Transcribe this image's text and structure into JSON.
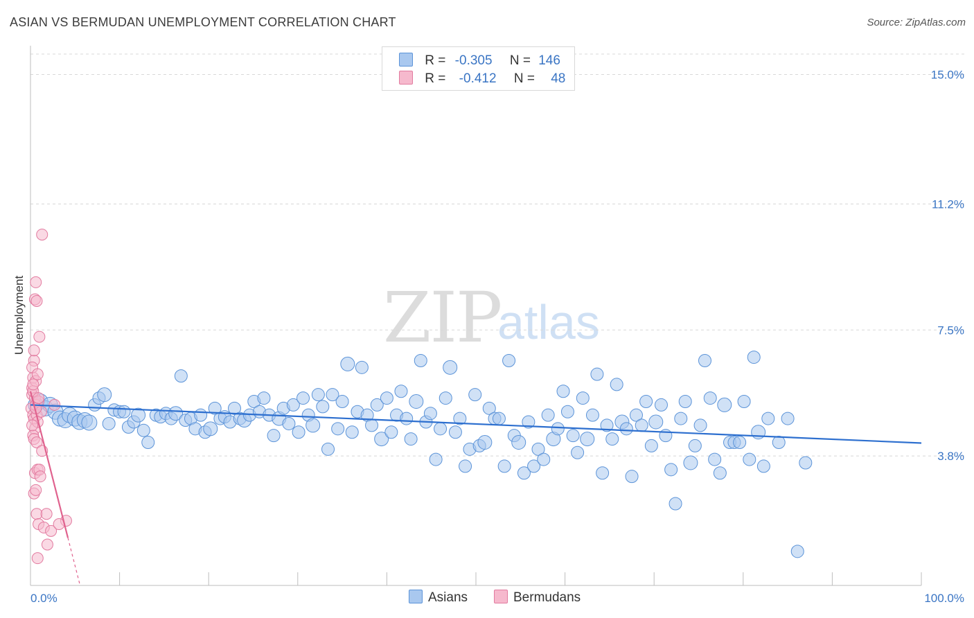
{
  "title": "ASIAN VS BERMUDAN UNEMPLOYMENT CORRELATION CHART",
  "source": "Source: ZipAtlas.com",
  "watermark": {
    "zip": "ZIP",
    "atlas": "atlas"
  },
  "legend": {
    "asians": {
      "r_label": "R =",
      "r_value": "-0.305",
      "n_label": "N =",
      "n_value": "146"
    },
    "bermudans": {
      "r_label": "R =",
      "r_value": "-0.412",
      "n_label": "N =",
      "n_value": "48"
    }
  },
  "bottom_legend": {
    "asians": "Asians",
    "bermudans": "Bermudans"
  },
  "colors": {
    "asian_fill": "#a9c8ef",
    "asian_stroke": "#5b93d8",
    "asian_line": "#2d6fcf",
    "bermudan_fill": "#f6b9cd",
    "bermudan_stroke": "#e27a9f",
    "bermudan_line": "#e0628e",
    "grid": "#d8d8d8",
    "tick_text": "#3a75c4"
  },
  "chart_data": {
    "type": "scatter",
    "title": "ASIAN VS BERMUDAN UNEMPLOYMENT CORRELATION CHART",
    "xlabel": "",
    "ylabel": "Unemployment",
    "xlim": [
      0,
      100
    ],
    "ylim": [
      0,
      15.6
    ],
    "x_tick_labels": [
      "0.0%",
      "100.0%"
    ],
    "y_ticks": [
      3.8,
      7.5,
      11.2,
      15.0
    ],
    "y_tick_labels": [
      "3.8%",
      "7.5%",
      "11.2%",
      "15.0%"
    ],
    "grid": "horizontal dashed",
    "legend_position": "top-center",
    "series": [
      {
        "name": "Asians",
        "trend": {
          "x": [
            0,
            100
          ],
          "y": [
            5.3,
            4.18
          ]
        },
        "points": [
          [
            0.6,
            5.3
          ],
          [
            1.1,
            5.4
          ],
          [
            1.7,
            5.2
          ],
          [
            2.2,
            5.3
          ],
          [
            2.8,
            5.1
          ],
          [
            3.3,
            4.9
          ],
          [
            3.9,
            4.85
          ],
          [
            4.4,
            5.0
          ],
          [
            5.0,
            4.9
          ],
          [
            5.5,
            4.8
          ],
          [
            6.1,
            4.85
          ],
          [
            6.6,
            4.78
          ],
          [
            7.2,
            5.3
          ],
          [
            7.7,
            5.5
          ],
          [
            8.3,
            5.6
          ],
          [
            8.8,
            4.75
          ],
          [
            9.4,
            5.15
          ],
          [
            10.0,
            5.1
          ],
          [
            10.5,
            5.1
          ],
          [
            11.0,
            4.65
          ],
          [
            11.6,
            4.8
          ],
          [
            12.1,
            5.0
          ],
          [
            12.7,
            4.55
          ],
          [
            13.2,
            4.2
          ],
          [
            14.1,
            5.0
          ],
          [
            14.6,
            4.95
          ],
          [
            15.2,
            5.05
          ],
          [
            15.8,
            4.9
          ],
          [
            16.3,
            5.05
          ],
          [
            16.9,
            6.15
          ],
          [
            17.4,
            4.85
          ],
          [
            18.0,
            4.9
          ],
          [
            18.5,
            4.6
          ],
          [
            19.1,
            5.0
          ],
          [
            19.6,
            4.5
          ],
          [
            20.2,
            4.6
          ],
          [
            20.7,
            5.2
          ],
          [
            21.3,
            4.9
          ],
          [
            21.8,
            4.95
          ],
          [
            22.4,
            4.8
          ],
          [
            22.9,
            5.2
          ],
          [
            23.5,
            4.9
          ],
          [
            24.0,
            4.85
          ],
          [
            24.6,
            5.0
          ],
          [
            25.1,
            5.4
          ],
          [
            25.7,
            5.1
          ],
          [
            26.2,
            5.5
          ],
          [
            26.8,
            5.0
          ],
          [
            27.3,
            4.4
          ],
          [
            27.9,
            4.9
          ],
          [
            28.4,
            5.2
          ],
          [
            29.0,
            4.75
          ],
          [
            29.5,
            5.3
          ],
          [
            30.1,
            4.5
          ],
          [
            30.6,
            5.5
          ],
          [
            31.2,
            5.0
          ],
          [
            31.7,
            4.7
          ],
          [
            32.3,
            5.6
          ],
          [
            32.8,
            5.25
          ],
          [
            33.4,
            4.0
          ],
          [
            33.9,
            5.6
          ],
          [
            34.5,
            4.6
          ],
          [
            35.0,
            5.4
          ],
          [
            35.6,
            6.5
          ],
          [
            36.1,
            4.5
          ],
          [
            36.7,
            5.1
          ],
          [
            37.2,
            6.4
          ],
          [
            37.8,
            5.0
          ],
          [
            38.3,
            4.7
          ],
          [
            38.9,
            5.3
          ],
          [
            39.4,
            4.3
          ],
          [
            40.0,
            5.5
          ],
          [
            40.5,
            4.5
          ],
          [
            41.1,
            5.0
          ],
          [
            41.6,
            5.7
          ],
          [
            42.2,
            4.9
          ],
          [
            42.7,
            4.3
          ],
          [
            43.3,
            5.4
          ],
          [
            43.8,
            6.6
          ],
          [
            44.4,
            4.8
          ],
          [
            44.9,
            5.05
          ],
          [
            45.5,
            3.7
          ],
          [
            46.0,
            4.6
          ],
          [
            46.6,
            5.5
          ],
          [
            47.1,
            6.4
          ],
          [
            47.7,
            4.5
          ],
          [
            48.2,
            4.9
          ],
          [
            48.8,
            3.5
          ],
          [
            49.3,
            4.0
          ],
          [
            49.9,
            5.6
          ],
          [
            50.4,
            4.1
          ],
          [
            51.0,
            4.2
          ],
          [
            51.5,
            5.2
          ],
          [
            52.1,
            4.9
          ],
          [
            52.6,
            4.9
          ],
          [
            53.2,
            3.5
          ],
          [
            53.7,
            6.6
          ],
          [
            54.3,
            4.4
          ],
          [
            54.8,
            4.2
          ],
          [
            55.4,
            3.3
          ],
          [
            55.9,
            4.8
          ],
          [
            56.5,
            3.5
          ],
          [
            57.0,
            4.0
          ],
          [
            57.6,
            3.7
          ],
          [
            58.1,
            5.0
          ],
          [
            58.7,
            4.3
          ],
          [
            59.2,
            4.6
          ],
          [
            59.8,
            5.7
          ],
          [
            60.3,
            5.1
          ],
          [
            60.9,
            4.4
          ],
          [
            61.4,
            3.9
          ],
          [
            62.0,
            5.5
          ],
          [
            62.5,
            4.3
          ],
          [
            63.1,
            5.0
          ],
          [
            63.6,
            6.2
          ],
          [
            64.2,
            3.3
          ],
          [
            64.7,
            4.7
          ],
          [
            65.3,
            4.3
          ],
          [
            65.8,
            5.9
          ],
          [
            66.4,
            4.8
          ],
          [
            66.9,
            4.6
          ],
          [
            67.5,
            3.2
          ],
          [
            68.0,
            5.0
          ],
          [
            68.6,
            4.7
          ],
          [
            69.1,
            5.4
          ],
          [
            69.7,
            4.1
          ],
          [
            70.2,
            4.8
          ],
          [
            70.8,
            5.3
          ],
          [
            71.3,
            4.4
          ],
          [
            71.9,
            3.4
          ],
          [
            72.4,
            2.4
          ],
          [
            73.0,
            4.9
          ],
          [
            73.5,
            5.4
          ],
          [
            74.1,
            3.6
          ],
          [
            74.6,
            4.1
          ],
          [
            75.2,
            4.7
          ],
          [
            75.7,
            6.6
          ],
          [
            76.3,
            5.5
          ],
          [
            76.8,
            3.7
          ],
          [
            77.4,
            3.3
          ],
          [
            77.9,
            5.3
          ],
          [
            78.5,
            4.2
          ],
          [
            79.0,
            4.2
          ],
          [
            79.6,
            4.2
          ],
          [
            80.1,
            5.4
          ],
          [
            80.7,
            3.7
          ],
          [
            81.2,
            6.7
          ],
          [
            81.7,
            4.5
          ],
          [
            82.3,
            3.5
          ],
          [
            82.8,
            4.9
          ],
          [
            84.0,
            4.2
          ],
          [
            85.0,
            4.9
          ],
          [
            86.1,
            1.0
          ],
          [
            87.0,
            3.6
          ]
        ]
      },
      {
        "name": "Bermudans",
        "trend": {
          "x": [
            0,
            4.2
          ],
          "y": [
            5.7,
            1.4
          ]
        },
        "points": [
          [
            0.1,
            5.2
          ],
          [
            0.2,
            5.6
          ],
          [
            0.3,
            5.0
          ],
          [
            0.4,
            4.9
          ],
          [
            0.2,
            5.8
          ],
          [
            0.5,
            5.5
          ],
          [
            0.3,
            6.1
          ],
          [
            0.6,
            5.3
          ],
          [
            0.4,
            6.6
          ],
          [
            0.7,
            5.0
          ],
          [
            0.5,
            4.6
          ],
          [
            0.8,
            4.8
          ],
          [
            0.3,
            4.4
          ],
          [
            0.6,
            6.0
          ],
          [
            0.9,
            5.4
          ],
          [
            0.4,
            4.3
          ],
          [
            0.7,
            4.2
          ],
          [
            1.2,
            5.1
          ],
          [
            0.5,
            3.3
          ],
          [
            0.8,
            3.4
          ],
          [
            1.0,
            3.4
          ],
          [
            1.3,
            3.95
          ],
          [
            0.4,
            2.7
          ],
          [
            0.6,
            2.8
          ],
          [
            1.1,
            3.2
          ],
          [
            0.7,
            2.1
          ],
          [
            1.8,
            2.1
          ],
          [
            0.9,
            1.8
          ],
          [
            1.5,
            1.7
          ],
          [
            2.3,
            1.6
          ],
          [
            4.0,
            1.9
          ],
          [
            3.2,
            1.8
          ],
          [
            0.8,
            0.8
          ],
          [
            1.9,
            1.2
          ],
          [
            0.5,
            8.4
          ],
          [
            0.6,
            8.9
          ],
          [
            0.7,
            8.35
          ],
          [
            1.0,
            7.3
          ],
          [
            0.2,
            6.4
          ],
          [
            0.4,
            6.9
          ],
          [
            1.3,
            10.3
          ],
          [
            0.3,
            5.7
          ],
          [
            0.6,
            5.2
          ],
          [
            0.2,
            4.7
          ],
          [
            0.9,
            5.5
          ],
          [
            2.7,
            5.3
          ],
          [
            0.8,
            6.2
          ],
          [
            0.3,
            5.9
          ]
        ]
      }
    ]
  }
}
